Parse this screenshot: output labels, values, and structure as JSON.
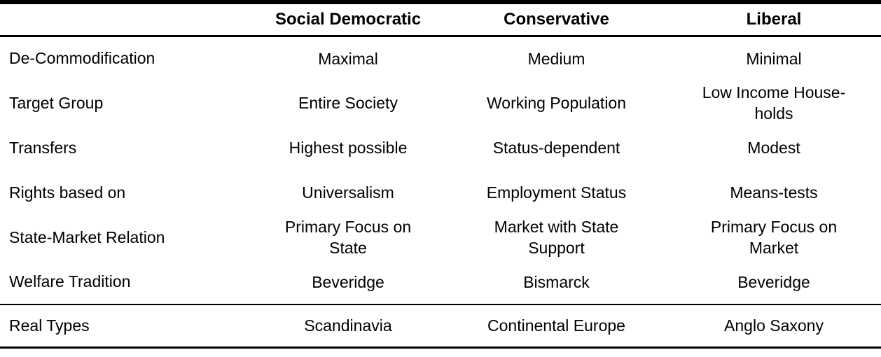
{
  "page": {
    "background_color": "#ffffff",
    "text_color": "#000000",
    "rule_color": "#000000"
  },
  "table": {
    "columns": [
      "",
      "Social Democratic",
      "Conservative",
      "Liberal"
    ],
    "rows": [
      {
        "label": "De-Commodification",
        "cells": [
          "Maximal",
          "Medium",
          "Minimal"
        ]
      },
      {
        "label": "Target Group",
        "cells": [
          "Entire Society",
          "Working Population",
          "Low Income House-\nholds"
        ]
      },
      {
        "label": "Transfers",
        "cells": [
          "Highest possible",
          "Status-dependent",
          "Modest"
        ]
      },
      {
        "label": "Rights based on",
        "cells": [
          "Universalism",
          "Employment Status",
          "Means-tests"
        ]
      },
      {
        "label": "State-Market Relation",
        "cells": [
          "Primary Focus on\nState",
          "Market with State\nSupport",
          "Primary Focus on\nMarket"
        ]
      },
      {
        "label": "Welfare Tradition",
        "cells": [
          "Beveridge",
          "Bismarck",
          "Beveridge"
        ]
      }
    ],
    "footer_row": {
      "label": "Real Types",
      "cells": [
        "Scandinavia",
        "Continental Europe",
        "Anglo Saxony"
      ]
    }
  }
}
